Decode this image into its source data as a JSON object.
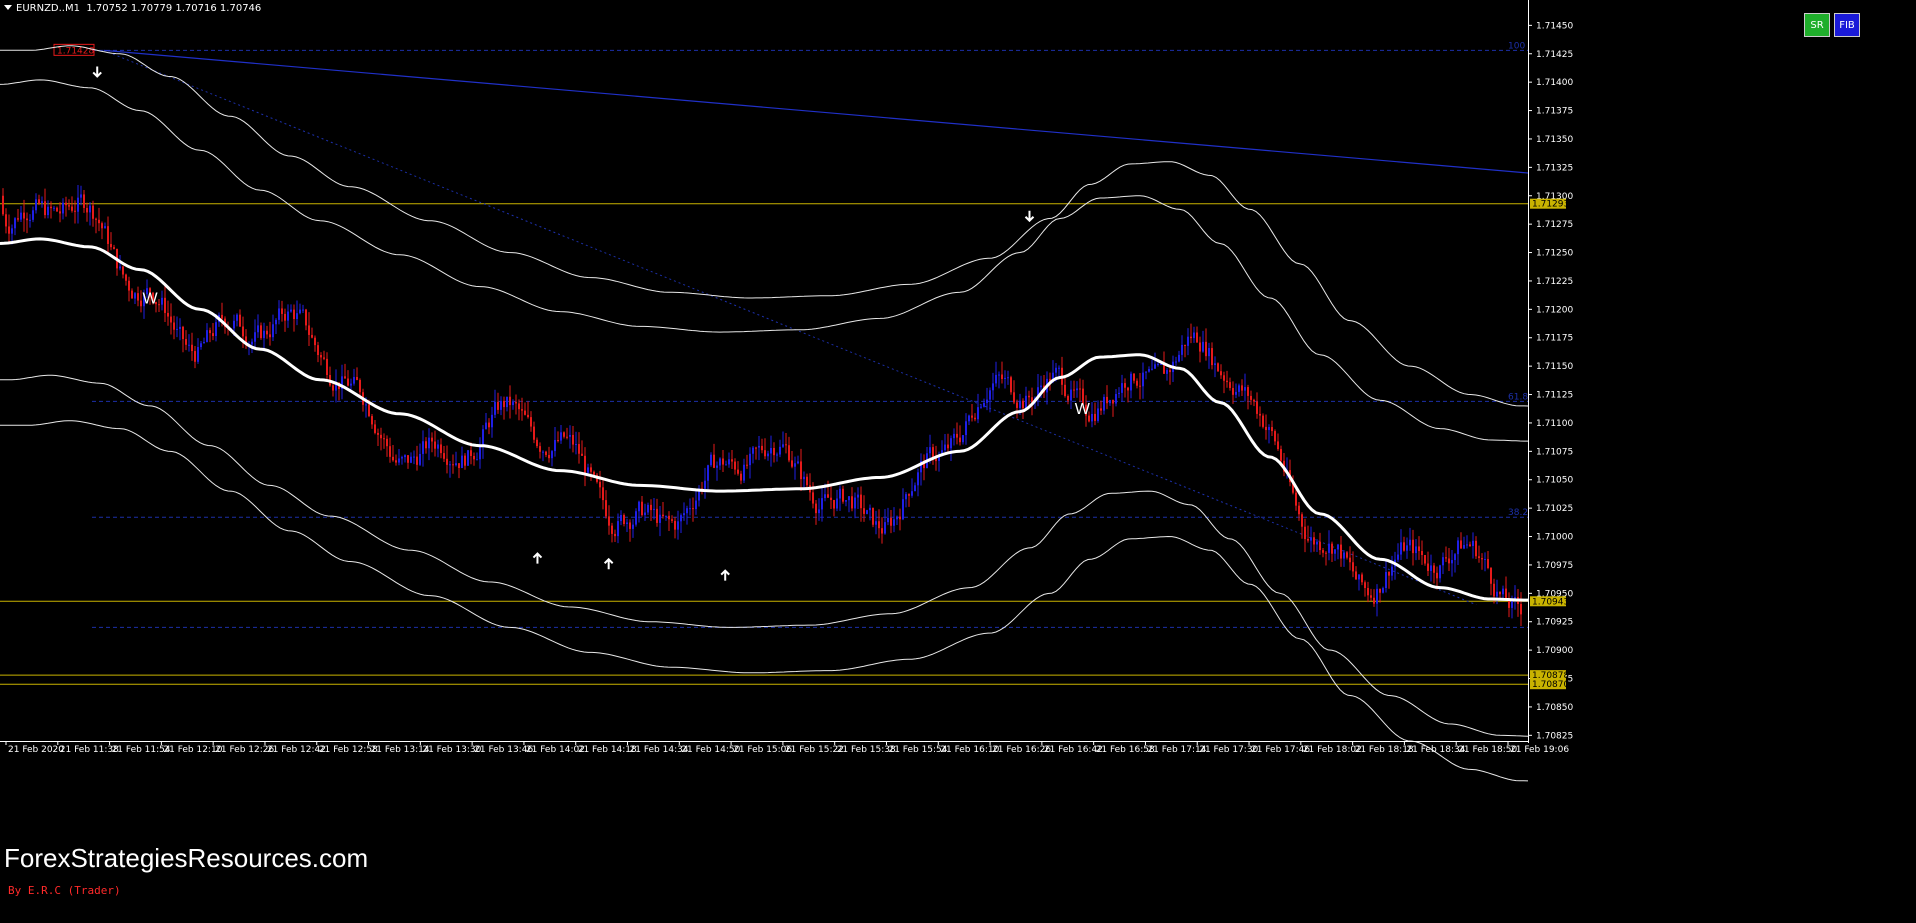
{
  "header": {
    "symbol": "EURNZD..M1",
    "ohlc": "1.70752 1.70779 1.70716 1.70746"
  },
  "buttons": {
    "sr": "SR",
    "fib": "FIB"
  },
  "watermark": "ForexStrategiesResources.com",
  "credit": "By E.R.C (Trader)",
  "colors": {
    "background": "#000000",
    "bull_candle": "#1f1fe6",
    "bear_candle": "#e61a1a",
    "ma_line": "#ffffff",
    "band": "#e8e8e8",
    "sr_line": "#c9b300",
    "trend_line": "#2030c8",
    "fib_line": "#1c2fa8"
  },
  "chart_data": {
    "type": "candlestick",
    "y_range": [
      1.7082,
      1.7146
    ],
    "y_ticks": [
      "1.71450",
      "1.71425",
      "1.71400",
      "1.71375",
      "1.71350",
      "1.71325",
      "1.71300",
      "1.71275",
      "1.71250",
      "1.71225",
      "1.71200",
      "1.71175",
      "1.71150",
      "1.71125",
      "1.71100",
      "1.71075",
      "1.71050",
      "1.71025",
      "1.71000",
      "1.70975",
      "1.70950",
      "1.70925",
      "1.70900",
      "1.70875",
      "1.70850",
      "1.70825"
    ],
    "x_ticks": [
      "21 Feb 2020",
      "21 Feb 11:38",
      "21 Feb 11:54",
      "21 Feb 12:10",
      "21 Feb 12:26",
      "21 Feb 12:42",
      "21 Feb 12:58",
      "21 Feb 13:14",
      "21 Feb 13:30",
      "21 Feb 13:46",
      "21 Feb 14:02",
      "21 Feb 14:18",
      "21 Feb 14:34",
      "21 Feb 14:50",
      "21 Feb 15:06",
      "21 Feb 15:22",
      "21 Feb 15:38",
      "21 Feb 15:54",
      "21 Feb 16:10",
      "21 Feb 16:26",
      "21 Feb 16:42",
      "21 Feb 16:58",
      "21 Feb 17:14",
      "21 Feb 17:30",
      "21 Feb 17:46",
      "21 Feb 18:02",
      "21 Feb 18:18",
      "21 Feb 18:34",
      "21 Feb 18:50",
      "21 Feb 19:06"
    ],
    "price_labels": [
      {
        "label": "1.71293",
        "value": 1.71293,
        "kind": "sr"
      },
      {
        "label": "1.70943",
        "value": 1.70943,
        "kind": "sr"
      },
      {
        "label": "1.70878",
        "value": 1.70878,
        "kind": "sr"
      },
      {
        "label": "1.70870",
        "value": 1.7087,
        "kind": "sr"
      }
    ],
    "high_marker": {
      "label": "1.71428",
      "value": 1.71428
    },
    "fib_levels": [
      {
        "label": "100",
        "value": 1.71428
      },
      {
        "label": "61.8",
        "value": 1.71119
      },
      {
        "label": "38.2",
        "value": 1.71017
      },
      {
        "label": "",
        "value": 1.7092
      }
    ],
    "trend_line": {
      "start": [
        "21 Feb 11:46",
        1.71428
      ],
      "end": [
        "21 Feb 19:06",
        1.7132
      ]
    },
    "dotted_trend": {
      "start": [
        "21 Feb 11:46",
        1.71428
      ],
      "end": [
        "21 Feb 18:50",
        1.7094
      ]
    },
    "annotations": [
      {
        "text": "W",
        "at": [
          "21 Feb 11:58",
          1.71205
        ]
      },
      {
        "text": "W",
        "at": [
          "21 Feb 16:46",
          1.71108
        ]
      }
    ],
    "down_arrows": [
      [
        "21 Feb 11:44",
        1.71405
      ],
      [
        "21 Feb 16:32",
        1.71278
      ]
    ],
    "up_arrows": [
      [
        "21 Feb 14:00",
        1.70985
      ],
      [
        "21 Feb 14:22",
        1.7098
      ],
      [
        "21 Feb 14:58",
        1.7097
      ]
    ]
  }
}
